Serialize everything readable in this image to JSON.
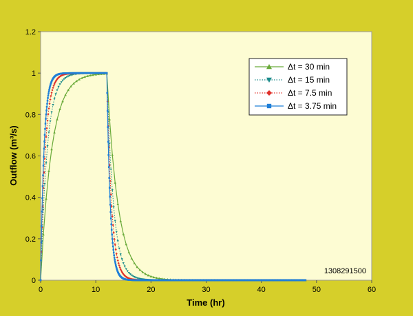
{
  "chart_data": {
    "type": "line",
    "title": "",
    "xlabel": "Time (hr)",
    "ylabel": "Outflow (m³/s)",
    "xlim": [
      0,
      60
    ],
    "ylim": [
      0,
      1.2
    ],
    "xticks": [
      "0",
      "10",
      "20",
      "30",
      "40",
      "50",
      "60"
    ],
    "yticks": [
      "0",
      "0.2",
      "0.4",
      "0.6",
      "0.8",
      "1",
      "1.2"
    ],
    "legend_position": "top-right",
    "grid": false,
    "annotation": "1308291500",
    "plot_background": "#fdfcd3",
    "page_background": "#d6cf2a",
    "model": {
      "inflow_duration_hr": 12,
      "end_time_hr": 48,
      "steady_outflow": 1.0
    },
    "series": [
      {
        "name": "Δt = 30 min",
        "dt_hr": 0.5,
        "tau_hr": 2.0,
        "color": "#6aaa3a",
        "marker": "triangle-up",
        "line": "solid"
      },
      {
        "name": "Δt = 15 min",
        "dt_hr": 0.25,
        "tau_hr": 1.2,
        "color": "#1a8a8a",
        "marker": "triangle-down",
        "line": "dotted"
      },
      {
        "name": "Δt = 7.5 min",
        "dt_hr": 0.125,
        "tau_hr": 0.85,
        "color": "#e0302a",
        "marker": "diamond",
        "line": "dotted"
      },
      {
        "name": "Δt = 3.75 min",
        "dt_hr": 0.0625,
        "tau_hr": 0.62,
        "color": "#1f7fd8",
        "marker": "square",
        "line": "solid"
      }
    ]
  }
}
